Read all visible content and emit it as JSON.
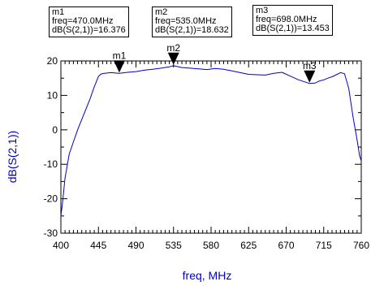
{
  "chart_data": {
    "type": "line",
    "xlabel": "freq, MHz",
    "ylabel": "dB(S(2,1))",
    "xlim": [
      400,
      760
    ],
    "ylim": [
      -30,
      20
    ],
    "x_ticks": [
      400,
      445,
      490,
      535,
      580,
      625,
      670,
      715,
      760
    ],
    "y_ticks": [
      -30,
      -20,
      -10,
      0,
      10,
      20
    ],
    "grid": false,
    "series": [
      {
        "color": "#0000cc",
        "x": [
          400,
          402,
          405,
          410,
          415,
          420,
          425,
          430,
          435,
          440,
          445,
          448,
          452,
          460,
          470,
          480,
          490,
          500,
          510,
          520,
          530,
          535,
          545,
          555,
          565,
          575,
          585,
          595,
          605,
          615,
          625,
          635,
          645,
          655,
          665,
          675,
          685,
          695,
          698,
          705,
          710,
          715,
          720,
          725,
          730,
          735,
          740,
          745,
          750,
          755,
          758,
          760
        ],
        "values": [
          -25,
          -21,
          -14,
          -7,
          -3.5,
          0,
          3,
          6,
          9,
          12.5,
          15.5,
          16.2,
          16.4,
          16.6,
          16.4,
          16.7,
          16.9,
          17.3,
          17.6,
          17.9,
          18.3,
          18.6,
          18.1,
          17.9,
          17.7,
          17.5,
          17.8,
          17.6,
          17.1,
          16.6,
          16.1,
          16.0,
          15.9,
          16.4,
          16.7,
          15.6,
          14.5,
          13.7,
          13.45,
          13.6,
          14.2,
          14.5,
          15.0,
          15.4,
          16.0,
          16.6,
          16.3,
          12.0,
          4.0,
          -3.0,
          -7.5,
          -9.0
        ]
      }
    ],
    "markers": [
      {
        "name": "m1",
        "x": 470,
        "y": 16.376,
        "freq_text": "freq=470.0MHz",
        "value_text": "dB(S(2,1))=16.376"
      },
      {
        "name": "m2",
        "x": 535,
        "y": 18.632,
        "freq_text": "freq=535.0MHz",
        "value_text": "dB(S(2,1))=18.632"
      },
      {
        "name": "m3",
        "x": 698,
        "y": 13.453,
        "freq_text": "freq=698.0MHz",
        "value_text": "dB(S(2,1))=13.453"
      }
    ],
    "colors": {
      "axis_label": "#0000cc",
      "trace": "#0000cc",
      "frame": "#000000"
    }
  }
}
